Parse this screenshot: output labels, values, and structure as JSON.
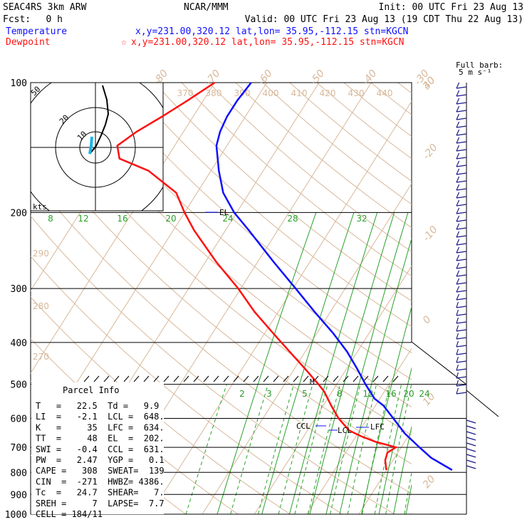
{
  "header": {
    "model": "SEAC4RS  3km ARW",
    "center": "NCAR/MMM",
    "init": "Init: 00 UTC Fri 23 Aug 13",
    "fcst_label": "Fcst:",
    "fcst_value": "0 h",
    "valid": "Valid: 00 UTC Fri 23 Aug 13 (19 CDT Thu 22 Aug 13)"
  },
  "legend": {
    "temperature_label": "Temperature",
    "temperature_info": "x,y=231.00,320.12   lat,lon= 35.95,-112.15   stn=KGCN",
    "dewpoint_label": "Dewpoint",
    "dewpoint_info": "x,y=231.00,320.12   lat,lon= 35.95,-112.15   stn=KGCN",
    "star_glyph": "☆"
  },
  "barb_key": {
    "line1": "Full barb:",
    "line2": "5 m s⁻¹"
  },
  "hodograph": {
    "units": "kts",
    "ring_labels": [
      "50",
      "20",
      "10"
    ]
  },
  "parcel_info": {
    "title": "Parcel Info",
    "rows": [
      "T   =   22.5  Td =   9.9",
      "LI  =   -2.1  LCL =  648.",
      "K   =     35  LFC =  634.",
      "TT  =     48  EL  =  202.",
      "SWI =   -0.4  CCL =  631.",
      "PW  =   2.47  YGP =   0.1",
      "CAPE =   308  SWEAT=  139",
      "CIN  =  -271  HWBZ= 4386.",
      "Tc  =   24.7  SHEAR=   7.",
      "SREH =     7  LAPSE=  7.7",
      "CELL = 184/11"
    ]
  },
  "markers": {
    "el": "EL",
    "ccl": "CCL",
    "lcl": "LCL",
    "lfc": "LFC",
    "m": "M"
  },
  "colors": {
    "temperature": "#1010ff",
    "dewpoint": "#ff1010",
    "isotherm": "#d8b89a",
    "mixing_ratio": "#2aa12a"
  },
  "chart_data": {
    "type": "line",
    "title": "",
    "xlabel": "",
    "ylabel": "",
    "pressure_ticks": [
      100,
      200,
      300,
      400,
      500,
      600,
      700,
      800,
      900,
      1000
    ],
    "isotherm_labels": [
      "-80",
      "-70",
      "-60",
      "-50",
      "-40",
      "-30",
      "-20",
      "-10",
      "0",
      "10",
      "20",
      "30",
      "40"
    ],
    "theta_labels_top": [
      "370",
      "380",
      "390",
      "400",
      "410",
      "420",
      "430",
      "440"
    ],
    "theta_labels_left": [
      "290",
      "280",
      "270"
    ],
    "mixing_ratio_labels_upper": [
      "8",
      "12",
      "16",
      "20",
      "24",
      "28",
      "32"
    ],
    "mixing_ratio_labels_lower": [
      "2",
      "3",
      "5",
      "8",
      "12",
      "16",
      "20",
      "24"
    ],
    "series": [
      {
        "name": "Temperature",
        "color": "#1010ff",
        "pressure": [
          790,
          740,
          700,
          650,
          600,
          560,
          540,
          500,
          460,
          420,
          380,
          340,
          300,
          260,
          220,
          200,
          180,
          160,
          140,
          130,
          120,
          110,
          100
        ],
        "values": [
          22.5,
          17,
          13.5,
          9,
          5,
          1.5,
          -1,
          -4.5,
          -8,
          -12,
          -17,
          -23,
          -29.5,
          -37,
          -45.5,
          -50.5,
          -55,
          -58.5,
          -62,
          -63,
          -63.5,
          -63.5,
          -63
        ]
      },
      {
        "name": "Dewpoint",
        "color": "#ff1010",
        "pressure": [
          790,
          750,
          720,
          700,
          680,
          660,
          640,
          600,
          560,
          520,
          500,
          460,
          420,
          380,
          340,
          300,
          260,
          220,
          200,
          180,
          160,
          150,
          140,
          130,
          120,
          110,
          100
        ],
        "values": [
          9.9,
          8.5,
          8,
          9,
          4.5,
          1,
          -2,
          -5.5,
          -8.5,
          -11.5,
          -13.5,
          -18,
          -23,
          -28.5,
          -34.5,
          -40.5,
          -48,
          -56,
          -60,
          -64,
          -72,
          -79,
          -81,
          -79,
          -76,
          -73,
          -70
        ]
      }
    ]
  }
}
